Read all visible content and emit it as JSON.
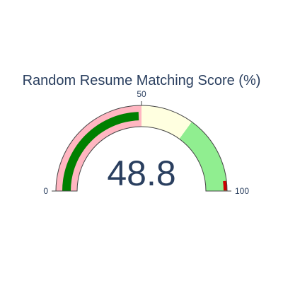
{
  "chart_data": {
    "type": "gauge",
    "title": "Random Resume Matching Score (%)",
    "value": 48.8,
    "value_label": "48.8",
    "range": [
      0,
      100
    ],
    "ticks": [
      {
        "value": 0,
        "label": "0"
      },
      {
        "value": 50,
        "label": "50"
      },
      {
        "value": 100,
        "label": "100"
      }
    ],
    "steps": [
      {
        "range": [
          0,
          50
        ],
        "color": "#ffb6c1"
      },
      {
        "range": [
          50,
          70
        ],
        "color": "#ffffe0"
      },
      {
        "range": [
          70,
          100
        ],
        "color": "#90ee90"
      }
    ],
    "bar_color": "#008000",
    "threshold": {
      "value": 98,
      "color": "#cc0000"
    }
  }
}
